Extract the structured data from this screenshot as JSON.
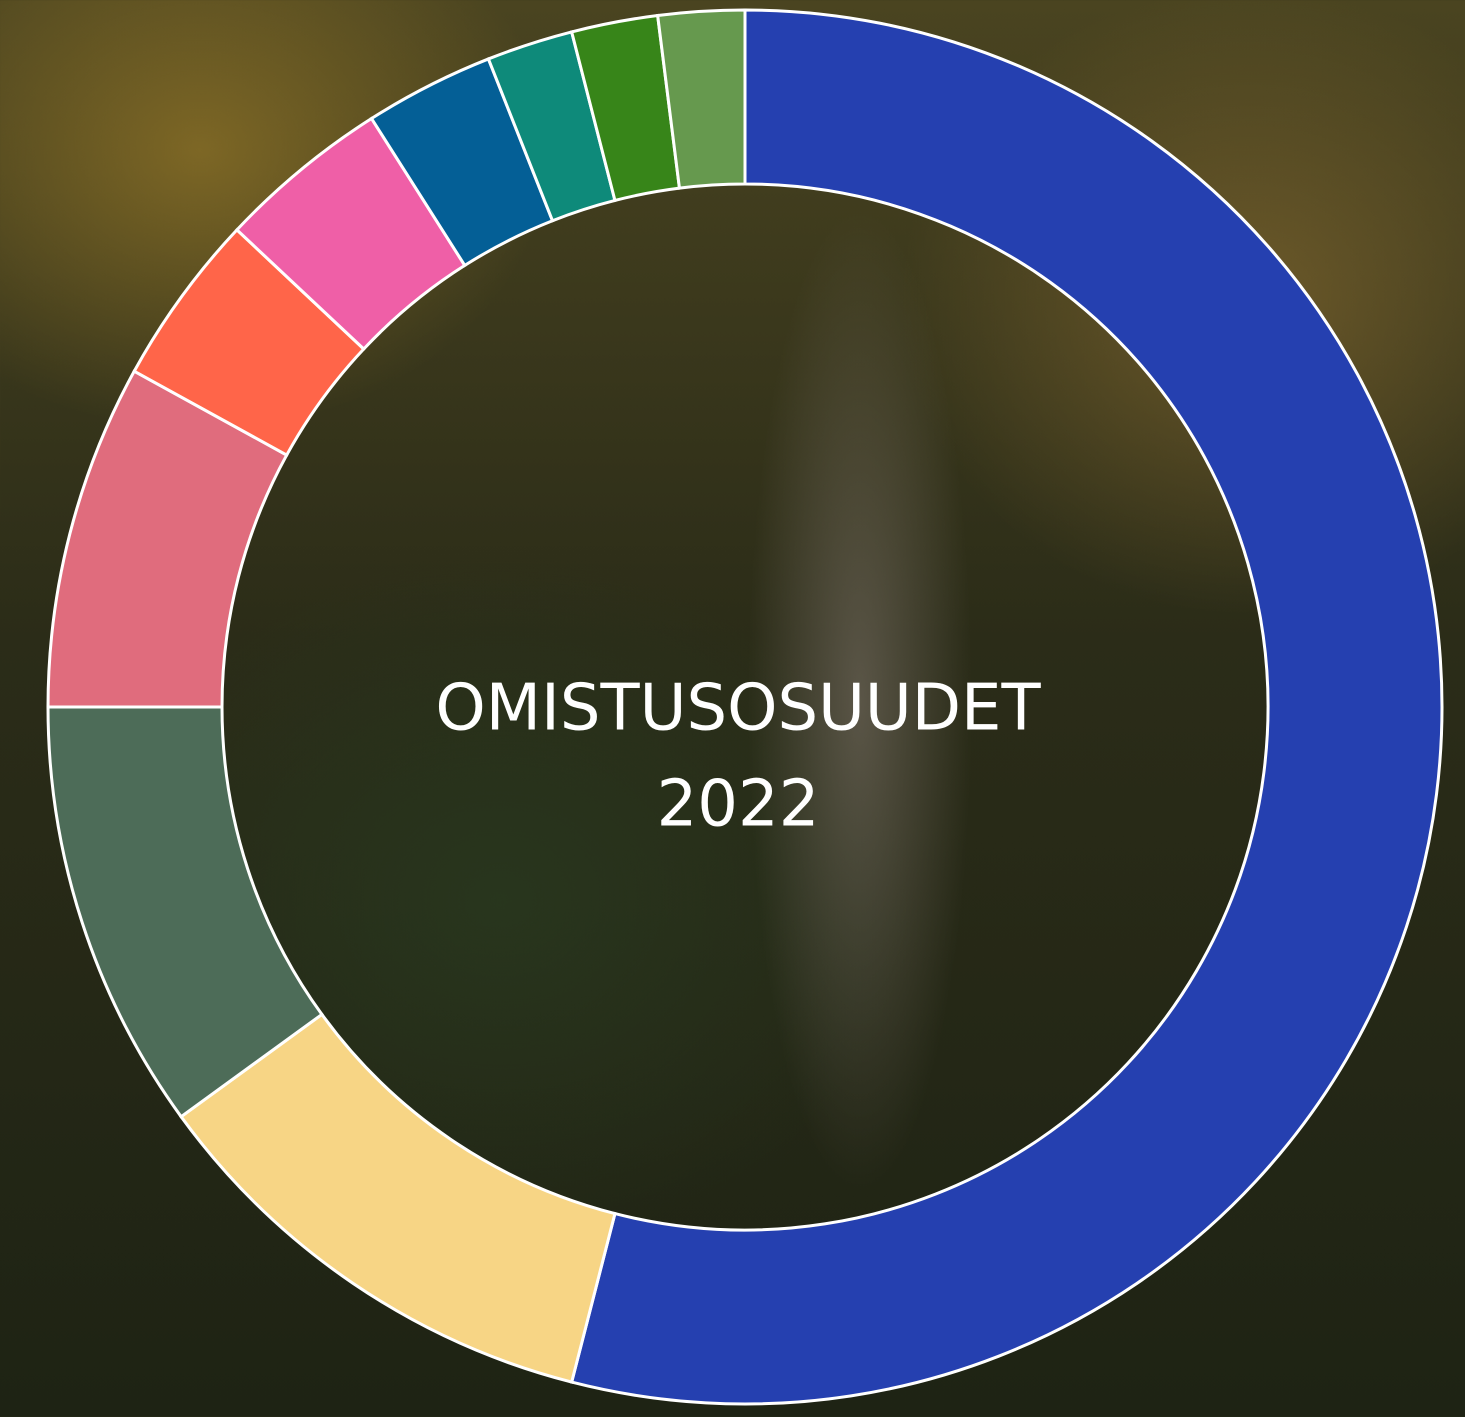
{
  "chart_data": {
    "type": "donut",
    "title": "OMISTUSOSUUDET",
    "subtitle": "2022",
    "values": [
      54,
      11,
      10,
      8,
      4,
      4,
      3,
      2,
      2,
      2
    ],
    "colors": [
      "#2540b0",
      "#f7d585",
      "#4d6c58",
      "#e06c7d",
      "#ff6549",
      "#ef5fa7",
      "#045f96",
      "#0e8a7a",
      "#378519",
      "#66994e"
    ]
  }
}
